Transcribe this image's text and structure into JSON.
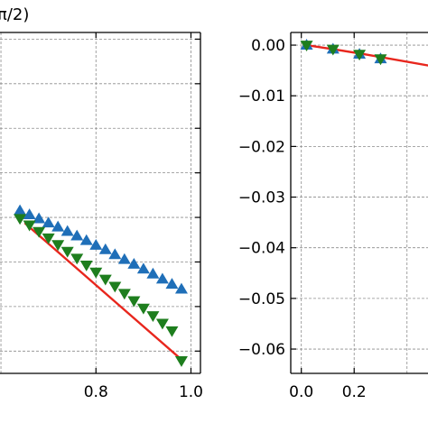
{
  "chart_data": [
    {
      "type": "line",
      "title": "π/2)",
      "xlabel": "",
      "ylabel": "",
      "xlim": [
        0.56,
        1.02
      ],
      "ylim": [
        -0.19,
        -0.037
      ],
      "x_ticks": [
        0.8,
        1.0
      ],
      "x_tick_labels": [
        "0.8",
        "1.0"
      ],
      "y_ticks": [
        -0.04,
        -0.06,
        -0.08,
        -0.1,
        -0.12,
        -0.14,
        -0.16,
        -0.18
      ],
      "grid": true,
      "colors": {
        "line": "#e8261d",
        "up": "#1f6fb8",
        "down": "#1e7e1e"
      },
      "series": [
        {
          "marker": "line",
          "x": [
            0.65,
            0.98
          ],
          "y": [
            -0.1225,
            -0.1838
          ]
        },
        {
          "marker": "triangle-up",
          "x": [
            0.64,
            0.66,
            0.68,
            0.7,
            0.72,
            0.74,
            0.76,
            0.78,
            0.8,
            0.82,
            0.84,
            0.86,
            0.88,
            0.9,
            0.92,
            0.94,
            0.96,
            0.98
          ],
          "y": [
            -0.117,
            -0.1188,
            -0.1206,
            -0.1225,
            -0.1243,
            -0.1263,
            -0.1283,
            -0.1304,
            -0.1325,
            -0.1345,
            -0.1367,
            -0.1389,
            -0.141,
            -0.1432,
            -0.1454,
            -0.1477,
            -0.15,
            -0.1522
          ]
        },
        {
          "marker": "triangle-down",
          "x": [
            0.64,
            0.66,
            0.68,
            0.7,
            0.72,
            0.74,
            0.76,
            0.78,
            0.8,
            0.82,
            0.84,
            0.86,
            0.88,
            0.9,
            0.92,
            0.94,
            0.96,
            0.98
          ],
          "y": [
            -0.1205,
            -0.1234,
            -0.1263,
            -0.1292,
            -0.1322,
            -0.1352,
            -0.1383,
            -0.1414,
            -0.1445,
            -0.1477,
            -0.1509,
            -0.1541,
            -0.1574,
            -0.1607,
            -0.1641,
            -0.1675,
            -0.1709,
            -0.1843
          ]
        }
      ]
    },
    {
      "type": "line",
      "title": "",
      "xlabel": "",
      "ylabel": "",
      "xlim": [
        -0.04,
        0.5
      ],
      "ylim": [
        -0.0648,
        0.0025
      ],
      "x_ticks": [
        0.0,
        0.2
      ],
      "x_tick_labels": [
        "0.0",
        "0.2"
      ],
      "y_ticks": [
        0.0,
        -0.01,
        -0.02,
        -0.03,
        -0.04,
        -0.05,
        -0.06
      ],
      "y_tick_labels": [
        "0.00",
        "−0.01",
        "−0.02",
        "−0.03",
        "−0.04",
        "−0.05",
        "−0.06"
      ],
      "grid": true,
      "colors": {
        "line": "#e8261d",
        "up": "#1f6fb8",
        "down": "#1e7e1e"
      },
      "series": [
        {
          "marker": "line",
          "x": [
            0.02,
            0.12,
            0.24,
            0.5
          ],
          "y": [
            0.0,
            -0.0008,
            -0.0018,
            -0.0042
          ]
        },
        {
          "marker": "triangle-up",
          "x": [
            0.02,
            0.12,
            0.22,
            0.3
          ],
          "y": [
            0.0,
            -0.0008,
            -0.0018,
            -0.0027
          ]
        },
        {
          "marker": "triangle-down",
          "x": [
            0.02,
            0.12,
            0.22,
            0.3
          ],
          "y": [
            0.0,
            -0.0008,
            -0.0018,
            -0.0027
          ]
        }
      ]
    }
  ]
}
